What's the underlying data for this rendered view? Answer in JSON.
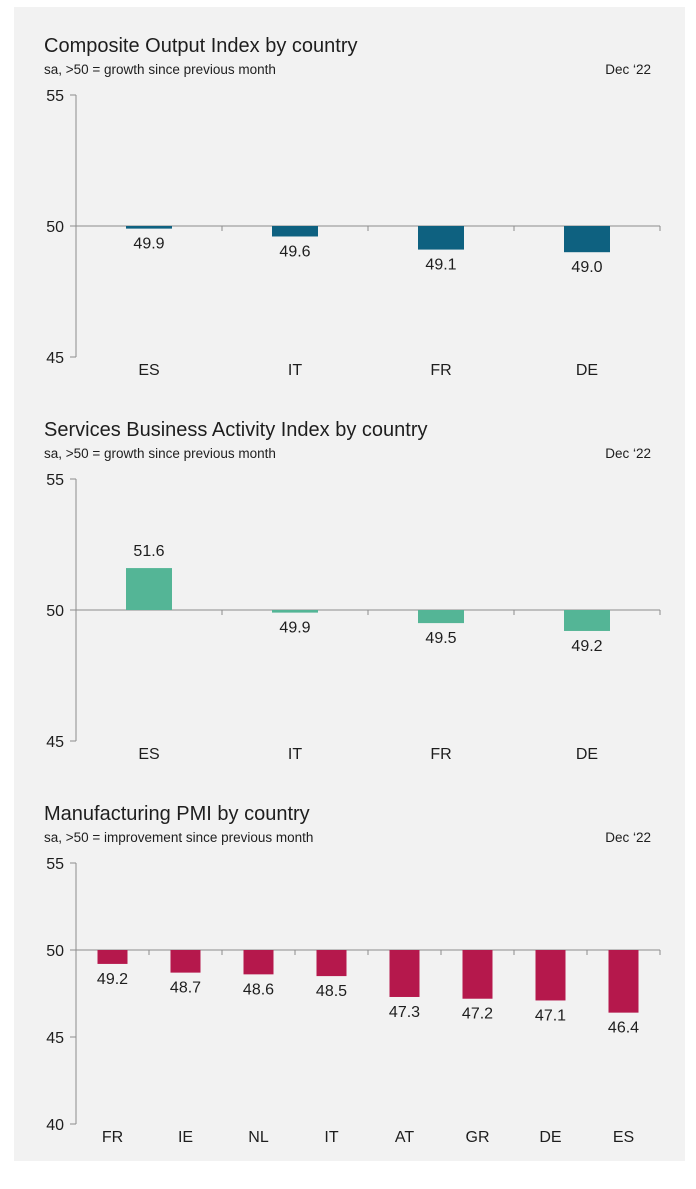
{
  "chart_data": [
    {
      "type": "bar",
      "title": "Composite Output Index by country",
      "subtitle": "sa, >50 = growth since previous month",
      "date_label": "Dec ‘22",
      "categories": [
        "ES",
        "IT",
        "FR",
        "DE"
      ],
      "values": [
        49.9,
        49.6,
        49.1,
        49.0
      ],
      "baseline": 50,
      "ylim": [
        45,
        55
      ],
      "yticks": [
        "45",
        "50",
        "55"
      ],
      "value_labels": [
        "49.9",
        "49.6",
        "49.1",
        "49.0"
      ],
      "color": "#0e6180"
    },
    {
      "type": "bar",
      "title": "Services Business Activity Index by country",
      "subtitle": "sa, >50 = growth since previous month",
      "date_label": "Dec ‘22",
      "categories": [
        "ES",
        "IT",
        "FR",
        "DE"
      ],
      "values": [
        51.6,
        49.9,
        49.5,
        49.2
      ],
      "baseline": 50,
      "ylim": [
        45,
        55
      ],
      "yticks": [
        "45",
        "50",
        "55"
      ],
      "value_labels": [
        "51.6",
        "49.9",
        "49.5",
        "49.2"
      ],
      "color": "#54b596"
    },
    {
      "type": "bar",
      "title": "Manufacturing PMI by country",
      "subtitle": "sa, >50 = improvement since previous month",
      "date_label": "Dec ‘22",
      "categories": [
        "FR",
        "IE",
        "NL",
        "IT",
        "AT",
        "GR",
        "DE",
        "ES"
      ],
      "values": [
        49.2,
        48.7,
        48.6,
        48.5,
        47.3,
        47.2,
        47.1,
        46.4
      ],
      "baseline": 50,
      "ylim": [
        40,
        55
      ],
      "yticks": [
        "40",
        "45",
        "50",
        "55"
      ],
      "value_labels": [
        "49.2",
        "48.7",
        "48.6",
        "48.5",
        "47.3",
        "47.2",
        "47.1",
        "46.4"
      ],
      "color": "#b5184c"
    }
  ]
}
